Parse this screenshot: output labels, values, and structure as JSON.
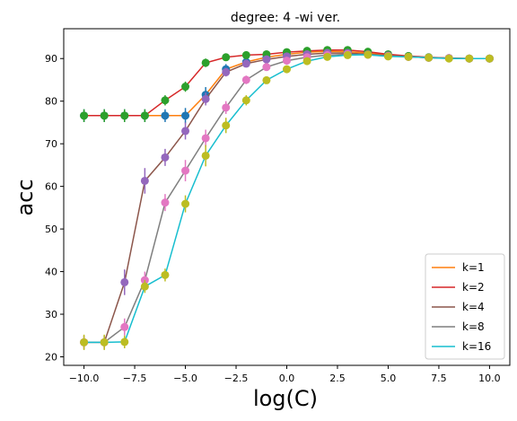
{
  "chart_data": {
    "type": "line",
    "title": "degree: 4 -wi ver.",
    "xlabel": "log(C)",
    "ylabel": "acc",
    "xlim": [
      -11,
      11
    ],
    "ylim": [
      18,
      97
    ],
    "xticks": [
      -10.0,
      -7.5,
      -5.0,
      -2.5,
      0.0,
      2.5,
      5.0,
      7.5,
      10.0
    ],
    "xtick_labels": [
      "−10.0",
      "−7.5",
      "−5.0",
      "−2.5",
      "0.0",
      "2.5",
      "5.0",
      "7.5",
      "10.0"
    ],
    "yticks": [
      20,
      30,
      40,
      50,
      60,
      70,
      80,
      90
    ],
    "yticks_labels": [
      "20",
      "30",
      "40",
      "50",
      "60",
      "70",
      "80",
      "90"
    ],
    "grid": false,
    "legend_position": "lower-right",
    "x": [
      -10,
      -9,
      -8,
      -7,
      -6,
      -5,
      -4,
      -3,
      -2,
      -1,
      0,
      1,
      2,
      3,
      4,
      5,
      6,
      7,
      8,
      9,
      10
    ],
    "series": [
      {
        "name": "k=1",
        "line_color": "#ff7f0e",
        "marker_color": "#1f77b4",
        "values": [
          76.6,
          76.6,
          76.6,
          76.6,
          76.6,
          76.6,
          81.5,
          87.5,
          89.2,
          90.3,
          91.0,
          91.5,
          91.7,
          91.6,
          91.3,
          90.8,
          90.5,
          90.2,
          90.1,
          90.0,
          90.0
        ],
        "errors": [
          1.5,
          1.5,
          1.5,
          1.5,
          1.5,
          1.8,
          1.8,
          1.2,
          0.8,
          0.6,
          0.5,
          0.5,
          0.5,
          0.5,
          0.5,
          0.4,
          0.4,
          0.4,
          0.4,
          0.4,
          0.4
        ]
      },
      {
        "name": "k=2",
        "line_color": "#d62728",
        "marker_color": "#2ca02c",
        "values": [
          76.6,
          76.6,
          76.6,
          76.6,
          80.2,
          83.4,
          89.0,
          90.3,
          90.8,
          91.0,
          91.5,
          91.8,
          92.0,
          92.0,
          91.6,
          91.0,
          90.6,
          90.3,
          90.1,
          90.0,
          90.0
        ],
        "errors": [
          1.5,
          1.5,
          1.5,
          1.5,
          1.2,
          1.2,
          1.0,
          0.6,
          0.5,
          0.5,
          0.5,
          0.5,
          0.5,
          0.5,
          0.5,
          0.4,
          0.4,
          0.4,
          0.4,
          0.4,
          0.4
        ]
      },
      {
        "name": "k=4",
        "line_color": "#8c564b",
        "marker_color": "#9467bd",
        "values": [
          23.4,
          23.4,
          37.5,
          61.3,
          66.8,
          73.0,
          80.5,
          86.8,
          88.8,
          89.8,
          90.5,
          91.0,
          91.3,
          91.3,
          91.0,
          90.7,
          90.4,
          90.2,
          90.1,
          90.0,
          90.0
        ],
        "errors": [
          1.5,
          1.5,
          3.0,
          3.0,
          2.0,
          2.0,
          1.5,
          1.0,
          0.8,
          0.6,
          0.5,
          0.5,
          0.5,
          0.5,
          0.5,
          0.4,
          0.4,
          0.4,
          0.4,
          0.4,
          0.4
        ]
      },
      {
        "name": "k=8",
        "line_color": "#7f7f7f",
        "marker_color": "#e377c2",
        "values": [
          23.4,
          23.4,
          27.0,
          38.0,
          56.2,
          63.7,
          71.3,
          78.5,
          85.0,
          88.0,
          89.5,
          90.3,
          90.8,
          91.0,
          90.9,
          90.6,
          90.4,
          90.2,
          90.1,
          90.0,
          90.0
        ],
        "errors": [
          1.5,
          1.5,
          2.0,
          2.0,
          2.0,
          2.5,
          2.0,
          1.5,
          1.0,
          0.8,
          0.6,
          0.5,
          0.5,
          0.5,
          0.5,
          0.4,
          0.4,
          0.4,
          0.4,
          0.4,
          0.4
        ]
      },
      {
        "name": "k=16",
        "line_color": "#17becf",
        "marker_color": "#bcbd22",
        "values": [
          23.4,
          23.4,
          23.5,
          36.5,
          39.2,
          55.9,
          67.2,
          74.3,
          80.2,
          84.9,
          87.5,
          89.4,
          90.4,
          90.8,
          90.9,
          90.5,
          90.4,
          90.2,
          90.0,
          90.0,
          90.0
        ],
        "errors": [
          1.8,
          1.8,
          1.5,
          1.5,
          1.5,
          2.0,
          2.5,
          1.8,
          1.2,
          0.8,
          0.6,
          0.5,
          0.5,
          0.5,
          0.5,
          0.4,
          0.4,
          0.4,
          0.4,
          0.4,
          0.4
        ]
      }
    ]
  }
}
